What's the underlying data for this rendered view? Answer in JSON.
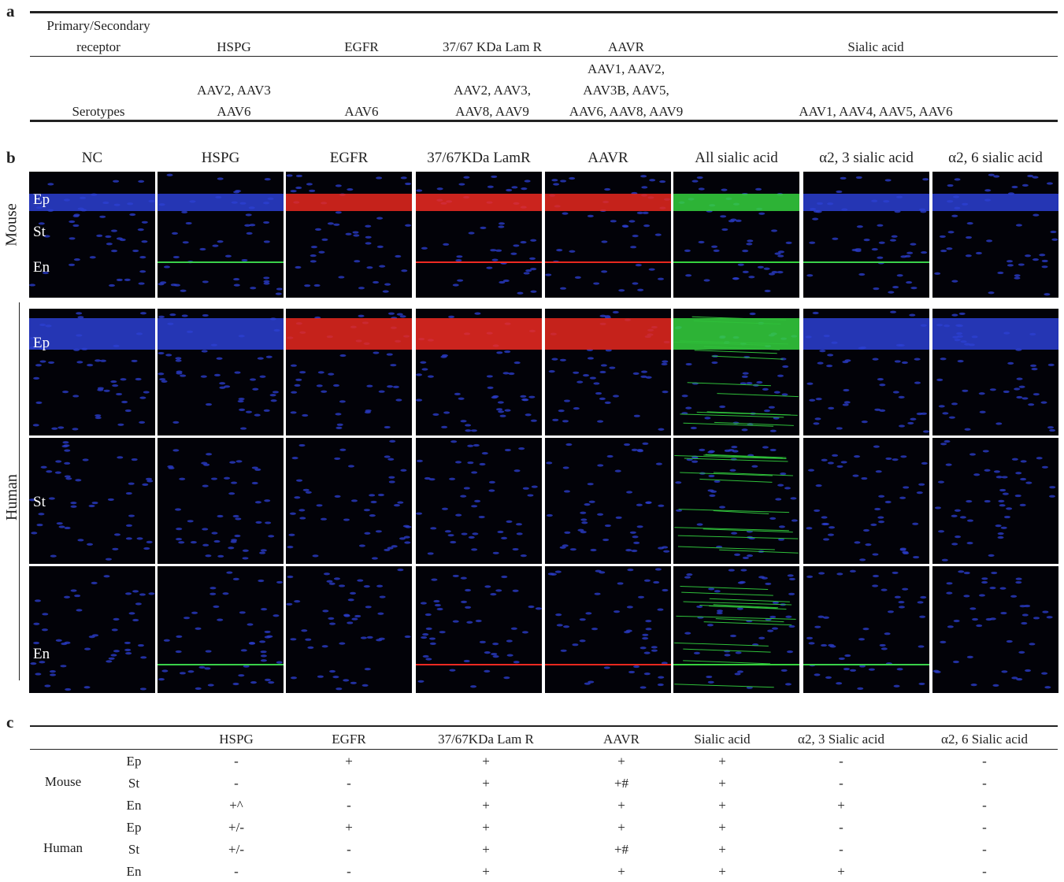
{
  "panel_a": {
    "label": "a",
    "header": [
      "Primary/Secondary receptor",
      "HSPG",
      "EGFR",
      "37/67 KDa Lam R",
      "AAVR",
      "Sialic acid"
    ],
    "row": [
      "Serotypes",
      "AAV2, AAV3 AAV6",
      "AAV6",
      "AAV2, AAV3, AAV8, AAV9",
      "AAV1, AAV2, AAV3B, AAV5, AAV6, AAV8, AAV9",
      "AAV1, AAV4, AAV5, AAV6"
    ]
  },
  "panel_b": {
    "label": "b",
    "columns": [
      "NC",
      "HSPG",
      "EGFR",
      "37/67KDa LamR",
      "AAVR",
      "All sialic acid",
      "α2, 3 sialic acid",
      "α2, 6 sialic acid"
    ],
    "mouse": {
      "label": "Mouse",
      "layers": [
        "Ep",
        "St",
        "En"
      ]
    },
    "human": {
      "label": "Human",
      "layers": [
        "Ep",
        "St",
        "En"
      ]
    }
  },
  "panel_c": {
    "label": "c",
    "header": [
      "HSPG",
      "EGFR",
      "37/67KDa Lam R",
      "AAVR",
      "Sialic acid",
      "α2, 3 Sialic acid",
      "α2, 6 Sialic acid"
    ],
    "groups": [
      {
        "name": "Mouse",
        "rows": [
          {
            "layer": "Ep",
            "cells": [
              "-",
              "+",
              "+",
              "+",
              "+",
              "-",
              "-"
            ]
          },
          {
            "layer": "St",
            "cells": [
              "-",
              "-",
              "+",
              "+#",
              "+",
              "-",
              "-"
            ]
          },
          {
            "layer": "En",
            "cells": [
              "+^",
              "-",
              "+",
              "+",
              "+",
              "+",
              "-"
            ]
          }
        ]
      },
      {
        "name": "Human",
        "rows": [
          {
            "layer": "Ep",
            "cells": [
              "+/-",
              "+",
              "+",
              "+",
              "+",
              "-",
              "-"
            ]
          },
          {
            "layer": "St",
            "cells": [
              "+/-",
              "-",
              "+",
              "+#",
              "+",
              "-",
              "-"
            ]
          },
          {
            "layer": "En",
            "cells": [
              "-",
              "-",
              "+",
              "+",
              "+",
              "+",
              "-"
            ]
          }
        ]
      }
    ]
  }
}
